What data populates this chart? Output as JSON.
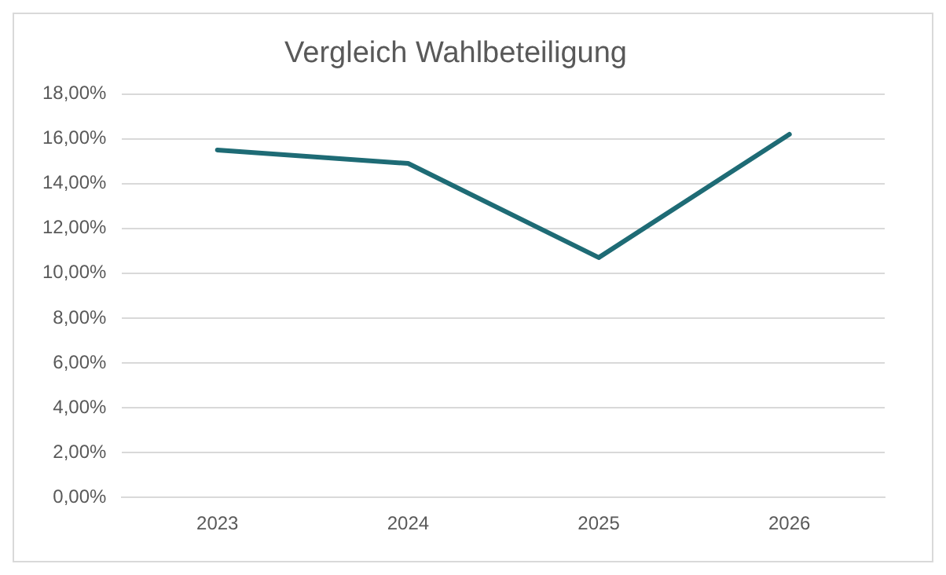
{
  "chart_data": {
    "type": "line",
    "title": "Vergleich Wahlbeteiligung",
    "categories": [
      "2023",
      "2024",
      "2025",
      "2026"
    ],
    "series": [
      {
        "color": "#1e6b75",
        "values": [
          15.5,
          14.9,
          10.7,
          16.2
        ]
      }
    ],
    "ylim": [
      0,
      18
    ],
    "yticks": [
      {
        "value": 0,
        "label": "0,00%"
      },
      {
        "value": 2,
        "label": "2,00%"
      },
      {
        "value": 4,
        "label": "4,00%"
      },
      {
        "value": 6,
        "label": "6,00%"
      },
      {
        "value": 8,
        "label": "8,00%"
      },
      {
        "value": 10,
        "label": "10,00%"
      },
      {
        "value": 12,
        "label": "12,00%"
      },
      {
        "value": 14,
        "label": "14,00%"
      },
      {
        "value": 16,
        "label": "16,00%"
      },
      {
        "value": 18,
        "label": "18,00%"
      }
    ],
    "grid": "y",
    "legend": false,
    "marker": "none",
    "line_style": "solid"
  }
}
